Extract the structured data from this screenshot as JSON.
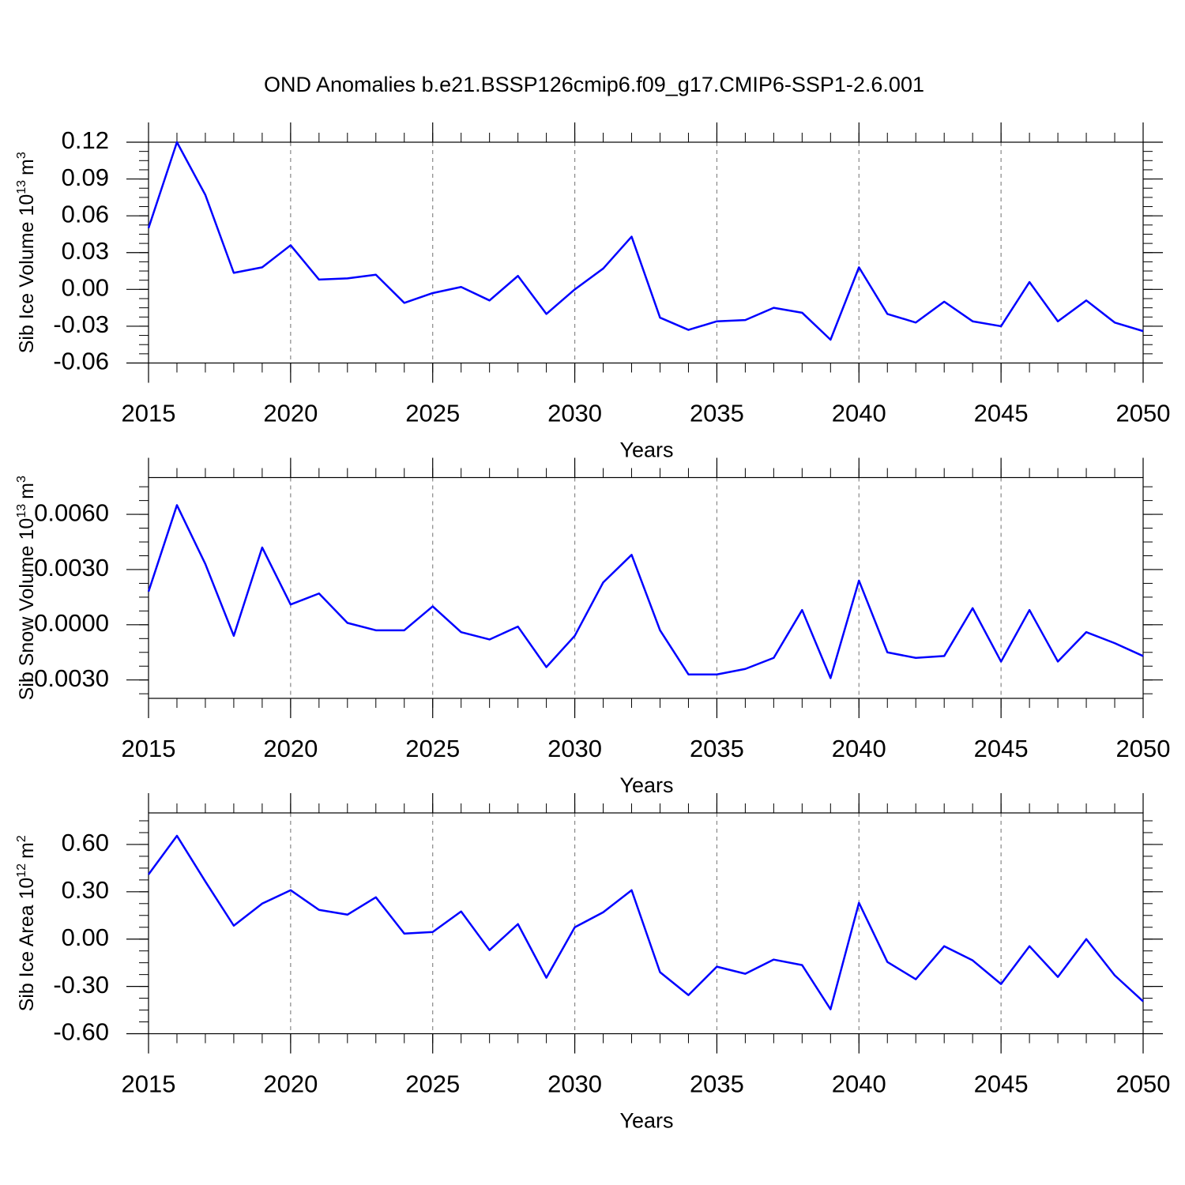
{
  "chart_data": [
    {
      "type": "line",
      "title": "OND Anomalies b.e21.BSSP126cmip6.f09_g17.CMIP6-SSP1-2.6.001",
      "xlabel": "Years",
      "ylabel": "Sib Ice Volume 10",
      "ylabel_exponent": "13",
      "ylabel_unit": "m",
      "ylabel_unit_exponent": "3",
      "x": [
        2015,
        2016,
        2017,
        2018,
        2019,
        2020,
        2021,
        2022,
        2023,
        2024,
        2025,
        2026,
        2027,
        2028,
        2029,
        2030,
        2031,
        2032,
        2033,
        2034,
        2035,
        2036,
        2037,
        2038,
        2039,
        2040,
        2041,
        2042,
        2043,
        2044,
        2045,
        2046,
        2047,
        2048,
        2049,
        2050
      ],
      "values": [
        0.05,
        0.12,
        0.077,
        0.0135,
        0.018,
        0.036,
        0.008,
        0.009,
        0.012,
        -0.011,
        -0.003,
        0.002,
        -0.009,
        0.011,
        -0.02,
        0.0,
        0.017,
        0.043,
        -0.023,
        -0.033,
        -0.026,
        -0.025,
        -0.015,
        -0.019,
        -0.041,
        0.018,
        -0.02,
        -0.027,
        -0.01,
        -0.026,
        -0.03,
        0.006,
        -0.026,
        -0.009,
        -0.027,
        -0.034
      ],
      "color": "#0000ff",
      "xlim": [
        2015,
        2050
      ],
      "xticks": [
        2015,
        2020,
        2025,
        2030,
        2035,
        2040,
        2045,
        2050
      ],
      "ylim": [
        -0.06,
        0.12
      ],
      "yticks": [
        -0.06,
        -0.03,
        {
          "value": 0,
          "label": "0.00"
        },
        0.03,
        0.06,
        0.09,
        0.12
      ],
      "grid": true
    },
    {
      "type": "line",
      "xlabel": "Years",
      "ylabel": "Sib Snow Volume 10",
      "ylabel_exponent": "13",
      "ylabel_unit": "m",
      "ylabel_unit_exponent": "3",
      "x": [
        2015,
        2016,
        2017,
        2018,
        2019,
        2020,
        2021,
        2022,
        2023,
        2024,
        2025,
        2026,
        2027,
        2028,
        2029,
        2030,
        2031,
        2032,
        2033,
        2034,
        2035,
        2036,
        2037,
        2038,
        2039,
        2040,
        2041,
        2042,
        2043,
        2044,
        2045,
        2046,
        2047,
        2048,
        2049,
        2050
      ],
      "values": [
        0.0018,
        0.0065,
        0.0033,
        -0.0006,
        0.0042,
        0.0011,
        0.0017,
        0.0001,
        -0.0003,
        -0.0003,
        0.001,
        -0.0004,
        -0.0008,
        -0.0001,
        -0.0023,
        -0.0006,
        0.0023,
        0.0038,
        -0.0003,
        -0.0027,
        -0.0027,
        -0.0024,
        -0.0018,
        0.0008,
        -0.0029,
        0.0024,
        -0.0015,
        -0.0018,
        -0.0017,
        0.0009,
        -0.002,
        0.0008,
        -0.002,
        -0.0004,
        -0.001,
        -0.0017
      ],
      "color": "#0000ff",
      "xlim": [
        2015,
        2050
      ],
      "xticks": [
        2015,
        2020,
        2025,
        2030,
        2035,
        2040,
        2045,
        2050
      ],
      "ylim": [
        -0.004,
        0.008
      ],
      "yticks": [
        {
          "value": -0.003,
          "label": "-0.0030"
        },
        {
          "value": 0,
          "label": "0.0000"
        },
        {
          "value": 0.003,
          "label": "0.0030"
        },
        {
          "value": 0.006,
          "label": "0.0060"
        }
      ],
      "grid": true
    },
    {
      "type": "line",
      "xlabel": "Years",
      "ylabel": "Sib Ice Area 10",
      "ylabel_exponent": "12",
      "ylabel_unit": "m",
      "ylabel_unit_exponent": "2",
      "x": [
        2015,
        2016,
        2017,
        2018,
        2019,
        2020,
        2021,
        2022,
        2023,
        2024,
        2025,
        2026,
        2027,
        2028,
        2029,
        2030,
        2031,
        2032,
        2033,
        2034,
        2035,
        2036,
        2037,
        2038,
        2039,
        2040,
        2041,
        2042,
        2043,
        2044,
        2045,
        2046,
        2047,
        2048,
        2049,
        2050
      ],
      "values": [
        0.41,
        0.655,
        0.365,
        0.085,
        0.225,
        0.31,
        0.185,
        0.155,
        0.265,
        0.035,
        0.045,
        0.175,
        -0.07,
        0.095,
        -0.245,
        0.075,
        0.17,
        0.31,
        -0.21,
        -0.355,
        -0.175,
        -0.22,
        -0.13,
        -0.165,
        -0.445,
        0.23,
        -0.145,
        -0.255,
        -0.045,
        -0.135,
        -0.285,
        -0.045,
        -0.24,
        0.0,
        -0.23,
        -0.395
      ],
      "color": "#0000ff",
      "xlim": [
        2015,
        2050
      ],
      "xticks": [
        2015,
        2020,
        2025,
        2030,
        2035,
        2040,
        2045,
        2050
      ],
      "ylim": [
        -0.6,
        0.8
      ],
      "yticks": [
        {
          "value": -0.6,
          "label": "-0.60"
        },
        {
          "value": -0.3,
          "label": "-0.30"
        },
        {
          "value": 0,
          "label": "0.00"
        },
        {
          "value": 0.3,
          "label": "0.30"
        },
        {
          "value": 0.6,
          "label": "0.60"
        }
      ],
      "grid": true
    }
  ]
}
